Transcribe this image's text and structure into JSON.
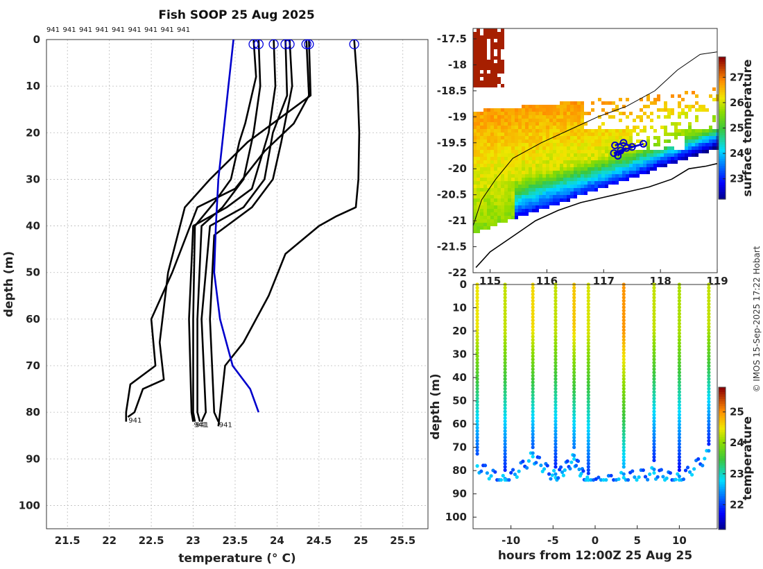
{
  "title": "Fish SOOP 25 Aug 2025",
  "credit": "© IMOS 15-Sep-2025 17:22 Hobart",
  "chart_data": [
    {
      "type": "line",
      "name": "temperature-depth profiles",
      "title": "Fish SOOP 25 Aug 2025",
      "xlabel": "temperature (° C)",
      "ylabel": "depth (m)",
      "xlim": [
        21.25,
        25.8
      ],
      "ylim": [
        105,
        0
      ],
      "xticks": [
        "21.5",
        "22",
        "22.5",
        "23",
        "23.5",
        "24",
        "24.5",
        "25",
        "25.5"
      ],
      "yticks": [
        "0",
        "10",
        "20",
        "30",
        "40",
        "50",
        "60",
        "70",
        "80",
        "90",
        "100"
      ],
      "top_labels": [
        "941",
        "941",
        "941",
        "941",
        "941",
        "941",
        "941",
        "941",
        "941"
      ],
      "bottom_label": "941",
      "surface_markers_temp": [
        23.72,
        23.78,
        23.96,
        24.1,
        24.15,
        24.35,
        24.38,
        24.92
      ],
      "climatology": {
        "name": "blue reference profile",
        "color": "#0000cc",
        "points": [
          [
            23.48,
            0
          ],
          [
            23.42,
            10
          ],
          [
            23.36,
            20
          ],
          [
            23.3,
            30
          ],
          [
            23.27,
            40
          ],
          [
            23.25,
            50
          ],
          [
            23.32,
            60
          ],
          [
            23.47,
            70
          ],
          [
            23.68,
            75
          ],
          [
            23.78,
            80
          ]
        ]
      },
      "series": [
        {
          "points": [
            [
              23.72,
              0
            ],
            [
              23.75,
              8
            ],
            [
              23.62,
              18
            ],
            [
              23.55,
              22
            ],
            [
              23.45,
              30
            ],
            [
              23.25,
              35
            ],
            [
              23.02,
              40
            ],
            [
              23.0,
              60
            ],
            [
              23.0,
              80
            ],
            [
              23.02,
              82
            ]
          ]
        },
        {
          "points": [
            [
              23.78,
              0
            ],
            [
              23.8,
              10
            ],
            [
              23.72,
              20
            ],
            [
              23.6,
              30
            ],
            [
              23.35,
              36
            ],
            [
              23.1,
              40
            ],
            [
              23.05,
              60
            ],
            [
              23.05,
              80
            ],
            [
              23.08,
              82
            ]
          ]
        },
        {
          "points": [
            [
              23.96,
              0
            ],
            [
              23.98,
              10
            ],
            [
              23.9,
              20
            ],
            [
              23.7,
              32
            ],
            [
              23.4,
              36
            ],
            [
              23.0,
              40
            ],
            [
              22.95,
              60
            ],
            [
              22.98,
              80
            ],
            [
              23.0,
              82
            ]
          ]
        },
        {
          "points": [
            [
              24.1,
              0
            ],
            [
              24.12,
              12
            ],
            [
              23.95,
              20
            ],
            [
              23.85,
              30
            ],
            [
              23.6,
              36
            ],
            [
              23.2,
              40
            ],
            [
              23.1,
              60
            ],
            [
              23.15,
              80
            ],
            [
              23.1,
              82
            ]
          ]
        },
        {
          "points": [
            [
              24.15,
              0
            ],
            [
              24.18,
              10
            ],
            [
              24.05,
              22
            ],
            [
              23.95,
              30
            ],
            [
              23.7,
              36
            ],
            [
              23.25,
              42
            ],
            [
              23.2,
              60
            ],
            [
              23.25,
              80
            ],
            [
              23.3,
              82
            ]
          ]
        },
        {
          "points": [
            [
              24.35,
              0
            ],
            [
              24.38,
              12
            ],
            [
              24.2,
              18
            ],
            [
              23.85,
              24
            ],
            [
              23.5,
              32
            ],
            [
              23.05,
              36
            ],
            [
              22.75,
              50
            ],
            [
              22.5,
              60
            ],
            [
              22.55,
              70
            ],
            [
              22.25,
              74
            ],
            [
              22.2,
              80
            ],
            [
              22.2,
              82
            ]
          ]
        },
        {
          "points": [
            [
              24.38,
              0
            ],
            [
              24.4,
              12
            ],
            [
              24.1,
              16
            ],
            [
              23.65,
              22
            ],
            [
              23.2,
              30
            ],
            [
              22.9,
              36
            ],
            [
              22.7,
              50
            ],
            [
              22.6,
              65
            ],
            [
              22.65,
              73
            ],
            [
              22.4,
              75
            ],
            [
              22.3,
              80
            ],
            [
              22.22,
              81
            ]
          ]
        },
        {
          "points": [
            [
              24.92,
              0
            ],
            [
              24.96,
              10
            ],
            [
              24.98,
              20
            ],
            [
              24.97,
              30
            ],
            [
              24.94,
              36
            ],
            [
              24.7,
              38
            ],
            [
              24.5,
              40
            ],
            [
              24.1,
              46
            ],
            [
              23.9,
              55
            ],
            [
              23.6,
              65
            ],
            [
              23.38,
              70
            ],
            [
              23.32,
              80
            ],
            [
              23.3,
              83
            ]
          ]
        }
      ]
    },
    {
      "type": "heatmap",
      "name": "surface temperature map",
      "xlim": [
        114.7,
        119.0
      ],
      "ylim": [
        -22.0,
        -17.3
      ],
      "xticks": [
        "115",
        "116",
        "117",
        "118",
        "119"
      ],
      "yticks": [
        "-17.5",
        "-18",
        "-18.5",
        "-19",
        "-19.5",
        "-20",
        "-20.5",
        "-21",
        "-21.5",
        "-22"
      ],
      "colorbar_label": "surface temperature",
      "colorbar_ticks": [
        "27",
        "26",
        "25",
        "24",
        "23"
      ],
      "colorbar_range": [
        22.2,
        27.8
      ],
      "track_points": [
        [
          117.2,
          -19.55
        ],
        [
          117.35,
          -19.5
        ],
        [
          117.5,
          -19.58
        ],
        [
          117.7,
          -19.52
        ],
        [
          117.3,
          -19.65
        ],
        [
          117.25,
          -19.75
        ],
        [
          117.4,
          -19.6
        ],
        [
          117.18,
          -19.7
        ]
      ]
    },
    {
      "type": "scatter",
      "name": "depth-time temperature section",
      "xlabel": "hours from 12:00Z 25 Aug 25",
      "ylabel": "depth (m)",
      "xlim": [
        -14.5,
        14.5
      ],
      "ylim": [
        105,
        0
      ],
      "xticks": [
        "-10",
        "-5",
        "0",
        "5",
        "10"
      ],
      "yticks": [
        "0",
        "10",
        "20",
        "30",
        "40",
        "50",
        "60",
        "70",
        "80",
        "90",
        "100"
      ],
      "colorbar_label": "temperature",
      "colorbar_ticks": [
        "25",
        "24",
        "23",
        "22"
      ],
      "colorbar_range": [
        21.2,
        25.8
      ],
      "casts": [
        {
          "t": -14.0,
          "max_depth": 74,
          "surface_temp": 24.5
        },
        {
          "t": -10.7,
          "max_depth": 81,
          "surface_temp": 24.3
        },
        {
          "t": -7.4,
          "max_depth": 70,
          "surface_temp": 24.6
        },
        {
          "t": -4.7,
          "max_depth": 79,
          "surface_temp": 24.3
        },
        {
          "t": -2.5,
          "max_depth": 71,
          "surface_temp": 24.7
        },
        {
          "t": -0.8,
          "max_depth": 82,
          "surface_temp": 24.4
        },
        {
          "t": 3.4,
          "max_depth": 79,
          "surface_temp": 25.0
        },
        {
          "t": 7.0,
          "max_depth": 77,
          "surface_temp": 24.3
        },
        {
          "t": 10.0,
          "max_depth": 80,
          "surface_temp": 24.2
        },
        {
          "t": 13.5,
          "max_depth": 69,
          "surface_temp": 24.3
        }
      ]
    }
  ]
}
